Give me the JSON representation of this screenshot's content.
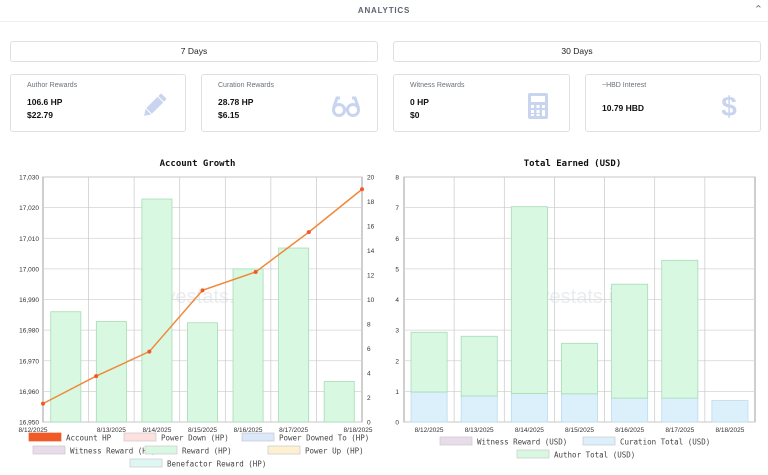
{
  "header": {
    "title": "ANALYTICS"
  },
  "ranges": {
    "seven": "7 Days",
    "thirty": "30 Days"
  },
  "cards": [
    {
      "label": "Author Rewards",
      "value1": "106.6 HP",
      "value2": "$22.79",
      "icon": "pencil-icon"
    },
    {
      "label": "Curation Rewards",
      "value1": "28.78 HP",
      "value2": "$6.15",
      "icon": "glasses-icon"
    },
    {
      "label": "Witness Rewards",
      "value1": "0 HP",
      "value2": "$0",
      "icon": "calculator-icon"
    },
    {
      "label": "~HBD Interest",
      "value1": "10.79 HBD",
      "value2": "",
      "icon": "dollar-icon"
    }
  ],
  "colors": {
    "accent_icon": "#c9d4ef",
    "green_fill": "#d9f8e2",
    "green_stroke": "#a3dcb4",
    "line": "#f0893a",
    "blue_fill": "#dcf0fb"
  },
  "watermark": "hivestats.io",
  "chart_data": [
    {
      "type": "bar",
      "title": "Account Growth",
      "categories": [
        "8/12/2025",
        "8/13/2025",
        "8/14/2025",
        "8/15/2025",
        "8/16/2025",
        "8/17/2025",
        "8/18/2025"
      ],
      "left_axis": {
        "ylim": [
          16950,
          17030
        ],
        "ticks": [
          "16,950",
          "16,960",
          "16,970",
          "16,980",
          "16,990",
          "17,000",
          "17,010",
          "17,020",
          "17,030"
        ]
      },
      "right_axis": {
        "ylim": [
          0,
          20
        ],
        "ticks": [
          "0",
          "2",
          "4",
          "6",
          "8",
          "10",
          "12",
          "14",
          "16",
          "18",
          "20"
        ]
      },
      "series": [
        {
          "name": "Account HP",
          "type": "line",
          "axis": "left",
          "values": [
            16956,
            16965,
            16973,
            16993,
            16999,
            17012,
            17026
          ]
        },
        {
          "name": "Reward (HP)",
          "type": "bar",
          "axis": "right",
          "values": [
            9,
            8.2,
            18.2,
            8.1,
            12.5,
            14.2,
            3.3
          ]
        }
      ],
      "legend": [
        "Account HP",
        "Power Down (HP)",
        "Power Downed To (HP)",
        "Witness Reward (HP)",
        "Reward (HP)",
        "Power Up (HP)",
        "Benefactor Reward (HP)"
      ],
      "legend_colors": [
        "#f05a28",
        "#fde0df",
        "#dbe7fb",
        "#e8dbea",
        "#d9f8e2",
        "#fdf1d2",
        "#def7f3"
      ]
    },
    {
      "type": "bar",
      "title": "Total Earned (USD)",
      "categories": [
        "8/12/2025",
        "8/13/2025",
        "8/14/2025",
        "8/15/2025",
        "8/16/2025",
        "8/17/2025",
        "8/18/2025"
      ],
      "ylim": [
        0,
        8
      ],
      "yticks": [
        "0",
        "1",
        "2",
        "3",
        "4",
        "5",
        "6",
        "7",
        "8"
      ],
      "series": [
        {
          "name": "Curation Total (USD)",
          "values": [
            0.98,
            0.85,
            0.93,
            0.92,
            0.78,
            0.78,
            0.7
          ]
        },
        {
          "name": "Author Total (USD)",
          "values": [
            1.95,
            1.95,
            6.1,
            1.65,
            3.72,
            4.5,
            0
          ]
        }
      ],
      "legend": [
        "Witness Reward (USD)",
        "Curation Total (USD)",
        "Author Total (USD)"
      ],
      "legend_colors": [
        "#e8dbea",
        "#dcf0fb",
        "#d9f8e2"
      ]
    }
  ]
}
